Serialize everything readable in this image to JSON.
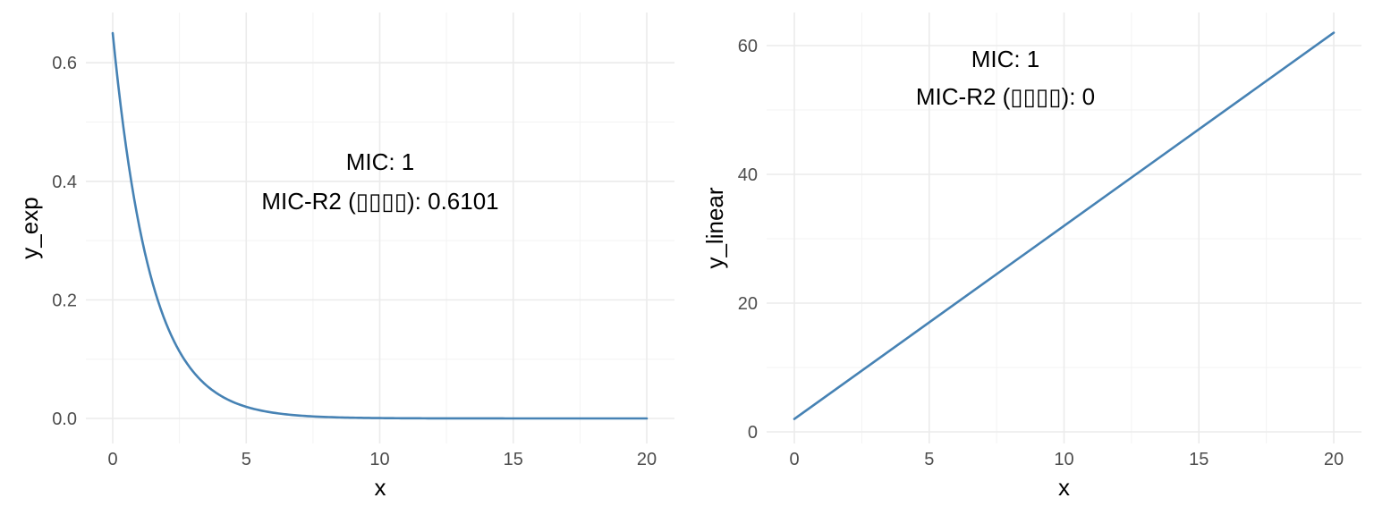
{
  "chart_data": [
    {
      "type": "line",
      "xlabel": "x",
      "ylabel": "y_exp",
      "xlim": [
        0,
        20
      ],
      "ylim": [
        0,
        0.65
      ],
      "x_ticks": [
        0,
        5,
        10,
        15,
        20
      ],
      "y_ticks": [
        0.0,
        0.2,
        0.4,
        0.6
      ],
      "y_tick_labels": [
        "0.0",
        "0.2",
        "0.4",
        "0.6"
      ],
      "grid": true,
      "series_color": "#4682b4",
      "function": "y = 0.65 * exp(-0.7 * x)",
      "x": [
        0,
        0.5,
        1,
        1.5,
        2,
        2.5,
        3,
        3.5,
        4,
        5,
        6,
        7,
        8,
        10,
        12,
        15,
        20
      ],
      "y": [
        0.65,
        0.458,
        0.323,
        0.227,
        0.16,
        0.113,
        0.08,
        0.056,
        0.04,
        0.02,
        0.01,
        0.005,
        0.002,
        0.001,
        0.0,
        0.0,
        0.0
      ],
      "annotations": [
        "MIC: 1",
        "MIC-R2 (▯▯▯▯): 0.6101"
      ]
    },
    {
      "type": "line",
      "xlabel": "x",
      "ylabel": "y_linear",
      "xlim": [
        0,
        20
      ],
      "ylim": [
        2,
        62
      ],
      "x_ticks": [
        0,
        5,
        10,
        15,
        20
      ],
      "y_ticks": [
        0,
        20,
        40,
        60
      ],
      "y_tick_labels": [
        "0",
        "20",
        "40",
        "60"
      ],
      "grid": true,
      "series_color": "#4682b4",
      "function": "y = 3x + 2",
      "x": [
        0,
        20
      ],
      "y": [
        2,
        62
      ],
      "annotations": [
        "MIC: 1",
        "MIC-R2 (▯▯▯▯): 0"
      ]
    }
  ]
}
